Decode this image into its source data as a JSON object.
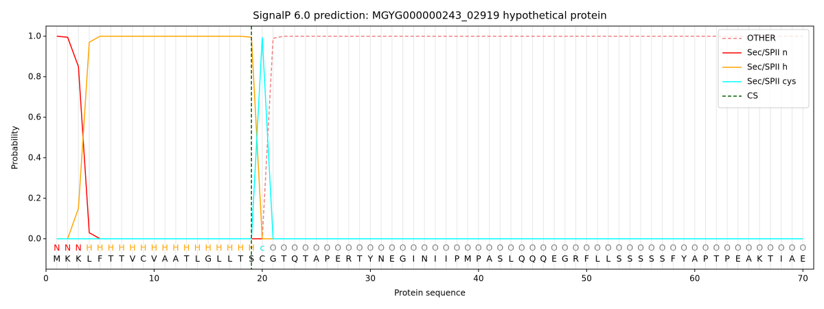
{
  "chart_data": {
    "type": "line",
    "title": "SignalP 6.0 prediction: MGYG000000243_02919 hypothetical protein",
    "xlabel": "Protein sequence",
    "ylabel": "Probability",
    "x": [
      1,
      2,
      3,
      4,
      5,
      6,
      7,
      8,
      9,
      10,
      11,
      12,
      13,
      14,
      15,
      16,
      17,
      18,
      19,
      20,
      21,
      22,
      23,
      24,
      25,
      26,
      27,
      28,
      29,
      30,
      31,
      32,
      33,
      34,
      35,
      36,
      37,
      38,
      39,
      40,
      41,
      42,
      43,
      44,
      45,
      46,
      47,
      48,
      49,
      50,
      51,
      52,
      53,
      54,
      55,
      56,
      57,
      58,
      59,
      60,
      61,
      62,
      63,
      64,
      65,
      66,
      67,
      68,
      69,
      70
    ],
    "residues": [
      "M",
      "K",
      "K",
      "L",
      "F",
      "T",
      "T",
      "V",
      "C",
      "V",
      "A",
      "A",
      "T",
      "L",
      "G",
      "L",
      "L",
      "T",
      "S",
      "C",
      "G",
      "T",
      "Q",
      "T",
      "A",
      "P",
      "E",
      "R",
      "T",
      "Y",
      "N",
      "E",
      "G",
      "I",
      "N",
      "I",
      "I",
      "P",
      "M",
      "P",
      "A",
      "S",
      "L",
      "Q",
      "Q",
      "Q",
      "E",
      "G",
      "R",
      "F",
      "L",
      "L",
      "S",
      "S",
      "S",
      "S",
      "S",
      "F",
      "Y",
      "A",
      "P",
      "T",
      "P",
      "E",
      "A",
      "K",
      "T",
      "I",
      "A",
      "E"
    ],
    "labels": [
      "N",
      "N",
      "N",
      "H",
      "H",
      "H",
      "H",
      "H",
      "H",
      "H",
      "H",
      "H",
      "H",
      "H",
      "H",
      "H",
      "H",
      "H",
      "H",
      "c",
      "O",
      "O",
      "O",
      "O",
      "O",
      "O",
      "O",
      "O",
      "O",
      "O",
      "O",
      "O",
      "O",
      "O",
      "O",
      "O",
      "O",
      "O",
      "O",
      "O",
      "O",
      "O",
      "O",
      "O",
      "O",
      "O",
      "O",
      "O",
      "O",
      "O",
      "O",
      "O",
      "O",
      "O",
      "O",
      "O",
      "O",
      "O",
      "O",
      "O",
      "O",
      "O",
      "O",
      "O",
      "O",
      "O",
      "O",
      "O",
      "O",
      "O"
    ],
    "label_colors": {
      "N": "#ff0000",
      "H": "#ffa500",
      "c": "#00e5e5",
      "O": "#808080"
    },
    "series": [
      {
        "name": "OTHER",
        "color": "#f08080",
        "dash": true,
        "values": [
          0,
          0,
          0,
          0,
          0,
          0,
          0,
          0,
          0,
          0,
          0,
          0,
          0,
          0,
          0,
          0,
          0,
          0,
          0,
          0,
          0.99,
          1,
          1,
          1,
          1,
          1,
          1,
          1,
          1,
          1,
          1,
          1,
          1,
          1,
          1,
          1,
          1,
          1,
          1,
          1,
          1,
          1,
          1,
          1,
          1,
          1,
          1,
          1,
          1,
          1,
          1,
          1,
          1,
          1,
          1,
          1,
          1,
          1,
          1,
          1,
          1,
          1,
          1,
          1,
          1,
          1,
          1,
          1,
          1,
          1
        ]
      },
      {
        "name": "Sec/SPII n",
        "color": "#ff0000",
        "dash": false,
        "values": [
          1.0,
          0.995,
          0.85,
          0.03,
          0,
          0,
          0,
          0,
          0,
          0,
          0,
          0,
          0,
          0,
          0,
          0,
          0,
          0,
          0,
          0,
          0,
          0,
          0,
          0,
          0,
          0,
          0,
          0,
          0,
          0,
          0,
          0,
          0,
          0,
          0,
          0,
          0,
          0,
          0,
          0,
          0,
          0,
          0,
          0,
          0,
          0,
          0,
          0,
          0,
          0,
          0,
          0,
          0,
          0,
          0,
          0,
          0,
          0,
          0,
          0,
          0,
          0,
          0,
          0,
          0,
          0,
          0,
          0,
          0,
          0
        ]
      },
      {
        "name": "Sec/SPII h",
        "color": "#ffa500",
        "dash": false,
        "values": [
          0,
          0,
          0.15,
          0.97,
          1,
          1,
          1,
          1,
          1,
          1,
          1,
          1,
          1,
          1,
          1,
          1,
          1,
          1,
          0.995,
          0,
          0,
          0,
          0,
          0,
          0,
          0,
          0,
          0,
          0,
          0,
          0,
          0,
          0,
          0,
          0,
          0,
          0,
          0,
          0,
          0,
          0,
          0,
          0,
          0,
          0,
          0,
          0,
          0,
          0,
          0,
          0,
          0,
          0,
          0,
          0,
          0,
          0,
          0,
          0,
          0,
          0,
          0,
          0,
          0,
          0,
          0,
          0,
          0,
          0,
          0
        ]
      },
      {
        "name": "Sec/SPII cys",
        "color": "#00ffff",
        "dash": false,
        "values": [
          0,
          0,
          0,
          0,
          0,
          0,
          0,
          0,
          0,
          0,
          0,
          0,
          0,
          0,
          0,
          0,
          0,
          0,
          0,
          0.995,
          0,
          0,
          0,
          0,
          0,
          0,
          0,
          0,
          0,
          0,
          0,
          0,
          0,
          0,
          0,
          0,
          0,
          0,
          0,
          0,
          0,
          0,
          0,
          0,
          0,
          0,
          0,
          0,
          0,
          0,
          0,
          0,
          0,
          0,
          0,
          0,
          0,
          0,
          0,
          0,
          0,
          0,
          0,
          0,
          0,
          0,
          0,
          0,
          0,
          0
        ]
      }
    ],
    "cs": {
      "name": "CS",
      "x": 19,
      "color": "#006400"
    },
    "xlim": [
      0,
      71
    ],
    "ylim": [
      -0.15,
      1.05
    ],
    "xticks": [
      0,
      10,
      20,
      30,
      40,
      50,
      60,
      70
    ],
    "yticks": [
      {
        "value": 0,
        "label": "0.0"
      },
      {
        "value": 0.2,
        "label": "0.2"
      },
      {
        "value": 0.4,
        "label": "0.4"
      },
      {
        "value": 0.6,
        "label": "0.6"
      },
      {
        "value": 0.8,
        "label": "0.8"
      },
      {
        "value": 1.0,
        "label": "1.0"
      }
    ],
    "legend": "upper right"
  }
}
